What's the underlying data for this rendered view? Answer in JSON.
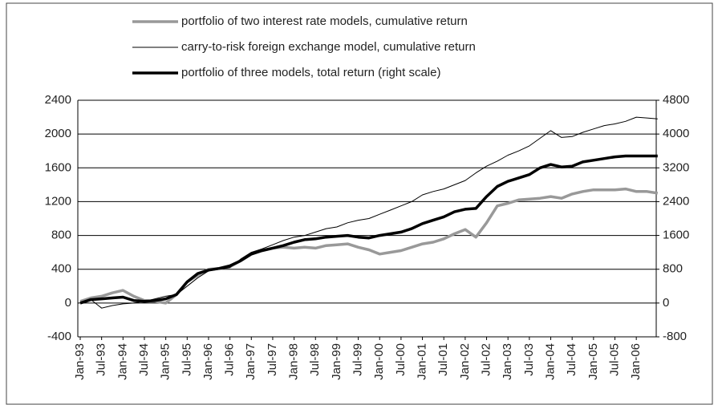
{
  "chart_data": {
    "type": "line",
    "categories": [
      "Jan-93",
      null,
      "Jul-93",
      null,
      "Jan-94",
      null,
      "Jul-94",
      null,
      "Jan-95",
      null,
      "Jul-95",
      null,
      "Jan-96",
      null,
      "Jul-96",
      null,
      "Jan-97",
      null,
      "Jul-97",
      null,
      "Jan-98",
      null,
      "Jul-98",
      null,
      "Jan-99",
      null,
      "Jul-99",
      null,
      "Jan-00",
      null,
      "Jul-00",
      null,
      "Jan-01",
      null,
      "Jul-01",
      null,
      "Jan-02",
      null,
      "Jul-02",
      null,
      "Jan-03",
      null,
      "Jul-03",
      null,
      "Jan-04",
      null,
      "Jul-04",
      null,
      "Jan-05",
      null,
      "Jul-05",
      null,
      "Jan-06",
      null,
      null
    ],
    "series": [
      {
        "name": "portfolio of two interest rate models, cumulative return",
        "color": "#999999",
        "width": 3.5,
        "values": [
          20,
          60,
          80,
          120,
          150,
          80,
          30,
          20,
          0,
          100,
          250,
          330,
          400,
          410,
          430,
          500,
          580,
          620,
          650,
          660,
          650,
          660,
          650,
          680,
          690,
          700,
          660,
          630,
          580,
          600,
          620,
          660,
          700,
          720,
          760,
          820,
          870,
          780,
          950,
          1150,
          1180,
          1220,
          1230,
          1240,
          1260,
          1240,
          1290,
          1320,
          1340,
          1340,
          1340,
          1350,
          1320,
          1320,
          1300
        ]
      },
      {
        "name": "carry-to-risk foreign exchange model, cumulative return",
        "color": "#000000",
        "width": 1,
        "values": [
          0,
          40,
          -60,
          -30,
          -10,
          0,
          20,
          50,
          80,
          100,
          200,
          300,
          380,
          400,
          420,
          520,
          600,
          640,
          690,
          740,
          780,
          800,
          840,
          880,
          900,
          950,
          980,
          1000,
          1050,
          1100,
          1150,
          1200,
          1280,
          1320,
          1350,
          1400,
          1450,
          1540,
          1620,
          1680,
          1750,
          1800,
          1860,
          1950,
          2040,
          1960,
          1970,
          2020,
          2060,
          2100,
          2120,
          2150,
          2200,
          2190,
          2180
        ]
      },
      {
        "name": "portfolio of three models, total return (right scale)",
        "color": "#000000",
        "width": 3.5,
        "axis": "y2",
        "values": [
          0,
          80,
          100,
          120,
          140,
          60,
          40,
          60,
          100,
          200,
          500,
          700,
          780,
          820,
          880,
          1000,
          1160,
          1240,
          1300,
          1360,
          1440,
          1500,
          1520,
          1560,
          1580,
          1600,
          1560,
          1540,
          1600,
          1640,
          1680,
          1760,
          1880,
          1960,
          2040,
          2160,
          2220,
          2240,
          2520,
          2760,
          2880,
          2960,
          3040,
          3200,
          3280,
          3220,
          3240,
          3340,
          3380,
          3420,
          3460,
          3480,
          3480,
          3480,
          3480
        ]
      }
    ],
    "ylim": [
      -400,
      2400
    ],
    "yticks": [
      -400,
      0,
      400,
      800,
      1200,
      1600,
      2000,
      2400
    ],
    "y2lim": [
      -800,
      4800
    ],
    "y2ticks": [
      -800,
      0,
      800,
      1600,
      2400,
      3200,
      4000,
      4800
    ],
    "grid": true,
    "legend": "top"
  }
}
